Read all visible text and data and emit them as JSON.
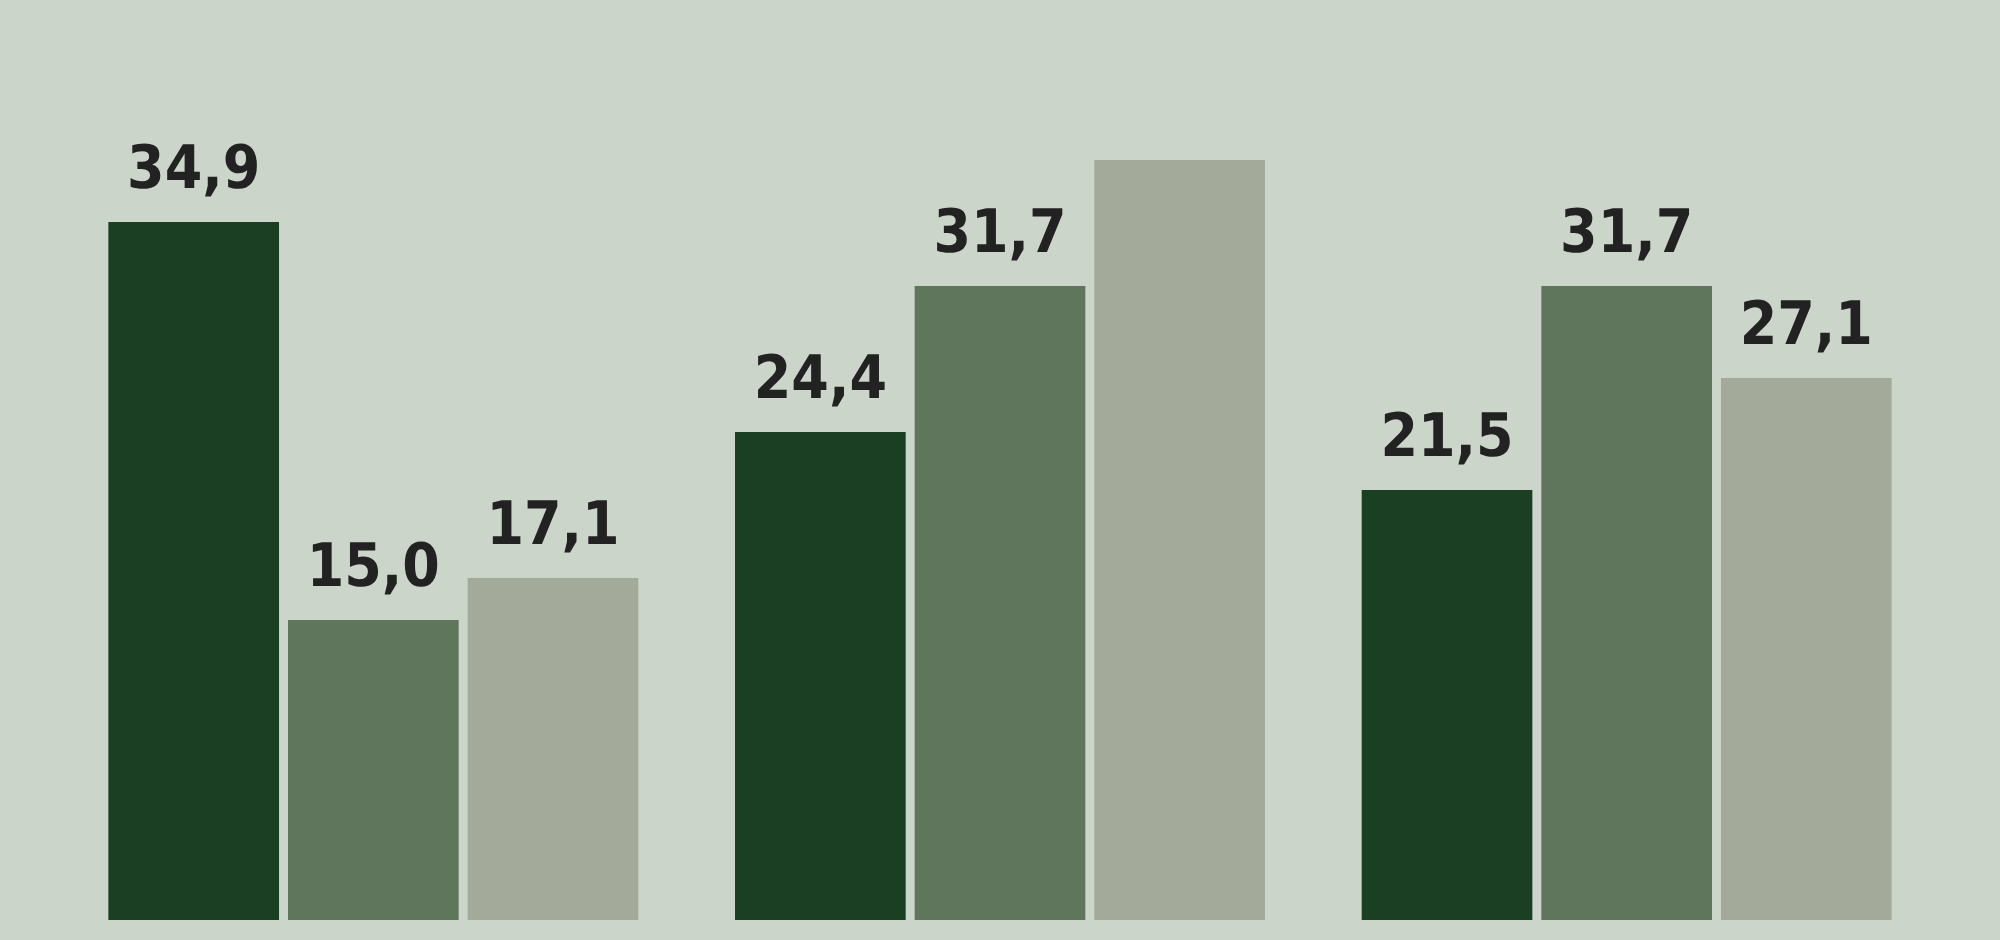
{
  "chart_data": {
    "type": "bar",
    "categories": [
      null,
      null,
      null
    ],
    "legend": false,
    "series": [
      {
        "color": "#1a3f22",
        "values": [
          34.9,
          24.4,
          21.5
        ],
        "value_labels": [
          "34,9",
          "24,4",
          "21,5"
        ]
      },
      {
        "color": "#5f765c",
        "values": [
          15.0,
          31.7,
          31.7
        ],
        "value_labels": [
          "15,0",
          "31,7",
          "31,7"
        ]
      },
      {
        "color": "#a3aa9a",
        "values": [
          17.1,
          38,
          27.1
        ],
        "value_labels": [
          "17,1",
          null,
          "27,1"
        ]
      }
    ]
  }
}
